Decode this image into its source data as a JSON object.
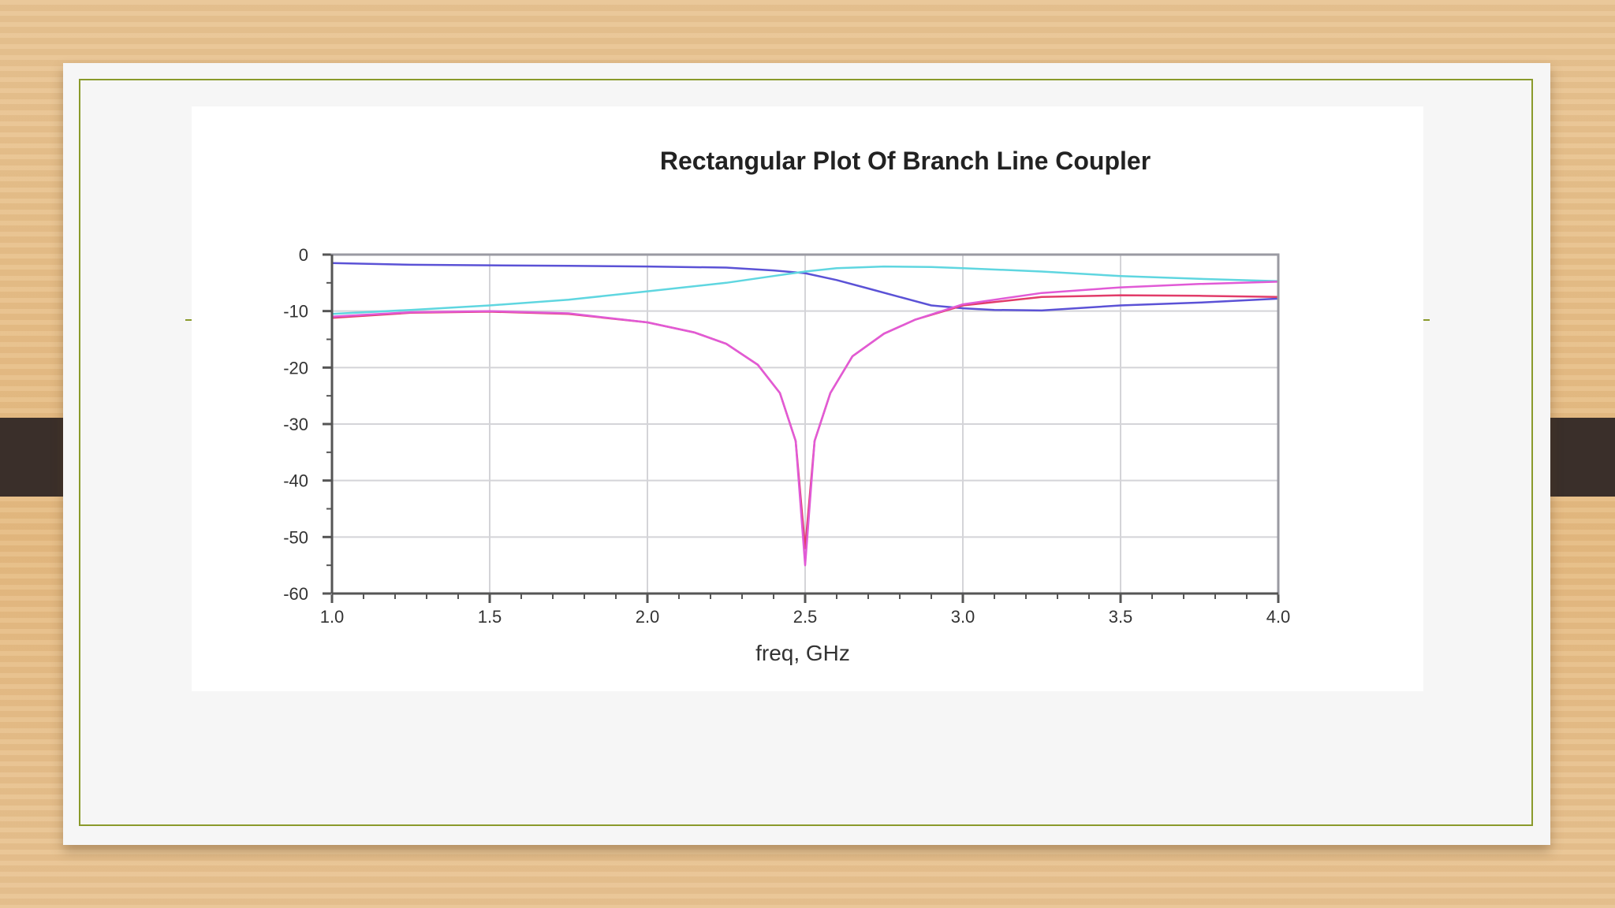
{
  "chart_data": {
    "type": "line",
    "title": "Rectangular Plot Of Branch Line Coupler",
    "xlabel": "freq, GHz",
    "ylabel": "",
    "xlim": [
      1.0,
      4.0
    ],
    "ylim": [
      -60,
      0
    ],
    "grid": true,
    "x_ticks": [
      "1.0",
      "1.5",
      "2.0",
      "2.5",
      "3.0",
      "3.5",
      "4.0"
    ],
    "y_ticks": [
      "0",
      "-10",
      "-20",
      "-30",
      "-40",
      "-50",
      "-60"
    ],
    "series": [
      {
        "color": "#5b52d6",
        "x": [
          1.0,
          1.25,
          1.5,
          1.75,
          2.0,
          2.25,
          2.4,
          2.5,
          2.6,
          2.7,
          2.8,
          2.9,
          3.0,
          3.1,
          3.25,
          3.5,
          3.75,
          4.0
        ],
        "y": [
          -1.5,
          -1.8,
          -1.9,
          -2.0,
          -2.1,
          -2.3,
          -2.8,
          -3.3,
          -4.5,
          -6.0,
          -7.5,
          -9.0,
          -9.5,
          -9.8,
          -9.9,
          -9.0,
          -8.5,
          -7.8
        ]
      },
      {
        "color": "#5fd6e0",
        "x": [
          1.0,
          1.25,
          1.5,
          1.75,
          2.0,
          2.25,
          2.4,
          2.5,
          2.6,
          2.75,
          2.9,
          3.0,
          3.25,
          3.5,
          3.75,
          4.0
        ],
        "y": [
          -10.5,
          -9.8,
          -9.0,
          -8.0,
          -6.5,
          -5.0,
          -3.8,
          -3.0,
          -2.4,
          -2.1,
          -2.2,
          -2.4,
          -3.0,
          -3.8,
          -4.3,
          -4.7
        ]
      },
      {
        "color": "#e23c6a",
        "x": [
          1.0,
          1.25,
          1.5,
          1.75,
          2.0,
          2.15,
          2.25,
          2.35,
          2.42,
          2.47,
          2.5,
          2.53,
          2.58,
          2.65,
          2.75,
          2.85,
          3.0,
          3.25,
          3.5,
          3.75,
          4.0
        ],
        "y": [
          -11.2,
          -10.3,
          -10.1,
          -10.5,
          -12.0,
          -13.8,
          -15.8,
          -19.5,
          -24.5,
          -33.0,
          -52.0,
          -33.0,
          -24.5,
          -18.0,
          -14.0,
          -11.5,
          -9.0,
          -7.5,
          -7.2,
          -7.3,
          -7.5
        ]
      },
      {
        "color": "#e15ad6",
        "x": [
          1.0,
          1.25,
          1.5,
          1.75,
          2.0,
          2.15,
          2.25,
          2.35,
          2.42,
          2.47,
          2.5,
          2.53,
          2.58,
          2.65,
          2.75,
          2.85,
          3.0,
          3.25,
          3.5,
          3.75,
          4.0
        ],
        "y": [
          -11.0,
          -10.2,
          -10.0,
          -10.4,
          -12.0,
          -13.8,
          -15.8,
          -19.5,
          -24.5,
          -33.0,
          -55.0,
          -33.0,
          -24.5,
          -18.0,
          -14.0,
          -11.5,
          -8.8,
          -6.8,
          -5.8,
          -5.2,
          -4.8
        ]
      }
    ]
  }
}
